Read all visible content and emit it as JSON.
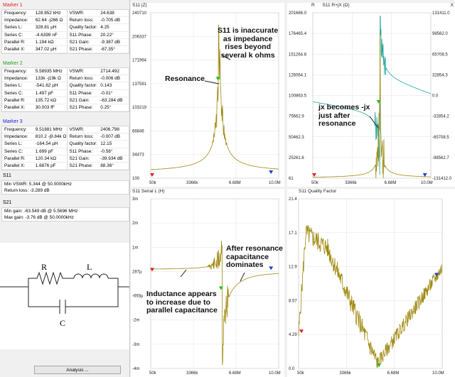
{
  "markers": [
    {
      "title": "Marker 1",
      "color": "#e02020",
      "rows": [
        [
          "Frequency:",
          "128.852 kHz",
          "VSWR:",
          "24.638"
        ],
        [
          "Impedance:",
          "62.64 -j266 Ω",
          "Return loss:",
          "-0.705 dB"
        ],
        [
          "Series L:",
          "328.81 µH",
          "Quality factor:",
          "4.25"
        ],
        [
          "Series C:",
          "-4.6399 nF",
          "S11 Phase:",
          "20.22°"
        ],
        [
          "Parallel R:",
          "1.194 kΩ",
          "S21 Gain:",
          "-9.387 dB"
        ],
        [
          "Parallel X:",
          "347.02 µH",
          "S21 Phase:",
          "-67.35°"
        ]
      ]
    },
    {
      "title": "Marker 2",
      "color": "#20a020",
      "rows": [
        [
          "Frequency:",
          "5.58935 MHz",
          "VSWR:",
          "2714.492"
        ],
        [
          "Impedance:",
          "133k -j19k Ω",
          "Return loss:",
          "-0.006 dB"
        ],
        [
          "Series L:",
          "-541.62 µH",
          "Quality factor:",
          "0.143"
        ],
        [
          "Series C:",
          "1.497 pF",
          "S11 Phase:",
          "-0.01°"
        ],
        [
          "Parallel R:",
          "135.72 kΩ",
          "S21 Gain:",
          "-63.284 dB"
        ],
        [
          "Parallel X:",
          "30.003 fF",
          "S21 Phase:",
          "0.25°"
        ]
      ]
    },
    {
      "title": "Marker 3",
      "color": "#2020d0",
      "rows": [
        [
          "Frequency:",
          "9.51881 MHz",
          "VSWR:",
          "2406.798"
        ],
        [
          "Impedance:",
          "810.2 -j9.84k Ω",
          "Return loss:",
          "-0.007 dB"
        ],
        [
          "Series L:",
          "-164.54 µH",
          "Quality factor:",
          "12.15"
        ],
        [
          "Series C:",
          "1.699 pF",
          "S11 Phase:",
          "-0.58°"
        ],
        [
          "Parallel R:",
          "120.34 kΩ",
          "S21 Gain:",
          "-39.934 dB"
        ],
        [
          "Parallel X:",
          "1.6876 pF",
          "S21 Phase:",
          "88.36°"
        ]
      ]
    }
  ],
  "s11": {
    "title": "S11",
    "rows": [
      "Min VSWR:    5.344 @ 50.0000kHz",
      "Return loss:   -3.289 dB"
    ]
  },
  "s21": {
    "title": "S21",
    "rows": [
      "Min gain:   -63.549 dB @ 5.5696 MHz",
      "Max gain:   -3.76 dB @ 50.0000kHz"
    ]
  },
  "circuit": {
    "r_label": "R",
    "l_label": "L",
    "c_label": "C"
  },
  "analysis_button": "Analysis ...",
  "colors": {
    "trace": "#a08a10",
    "trace2": "#20a8a0",
    "marker1": "#e02020",
    "marker2": "#20c020",
    "marker3": "#2040d0"
  },
  "x_ticks": [
    "50k",
    "3366k",
    "6.68M",
    "10.0M"
  ],
  "charts": {
    "z": {
      "title": "S11 |Z|",
      "y_ticks": [
        "240710",
        "206337",
        "171964",
        "137591",
        "103219",
        "68846",
        "34473",
        "100"
      ],
      "annotations": {
        "top": [
          "S11 is inaccurate",
          "as impedance",
          "rises beyond",
          "several k ohms"
        ],
        "res": [
          "Resonance"
        ]
      }
    },
    "rx": {
      "title": "S11 R+jX (Ω)",
      "left_label": "R",
      "right_label": "X",
      "y_ticks_left": [
        "201666.0",
        "176465.4",
        "151264.8",
        "126064.1",
        "100863.5",
        "75662.9",
        "50462.3",
        "25261.6",
        "61"
      ],
      "y_ticks_right": [
        "131411.0",
        "98562.0",
        "65708.5",
        "32854.3",
        "0.0",
        "-32854.2",
        "-65708.5",
        "-98562.7",
        "-131412.0"
      ],
      "annotation": [
        "jx becomes -jx",
        "just after",
        "resonance"
      ]
    },
    "l": {
      "title": "S11 Serial L (H)",
      "y_ticks": [
        "3m",
        "2m",
        "1m",
        "287µ",
        "-693µ",
        "-2m",
        "-3m",
        "-4m"
      ],
      "annotations": {
        "ind": [
          "Inductance appears",
          "to increase due to",
          "parallel capacitance"
        ],
        "cap": [
          "After resonance",
          "capacitance",
          "dominates"
        ]
      }
    },
    "q": {
      "title": "S11 Quality Factor",
      "y_ticks": [
        "21.4",
        "17.1",
        "12.9",
        "8.57",
        "4.29",
        "0.0"
      ]
    }
  }
}
